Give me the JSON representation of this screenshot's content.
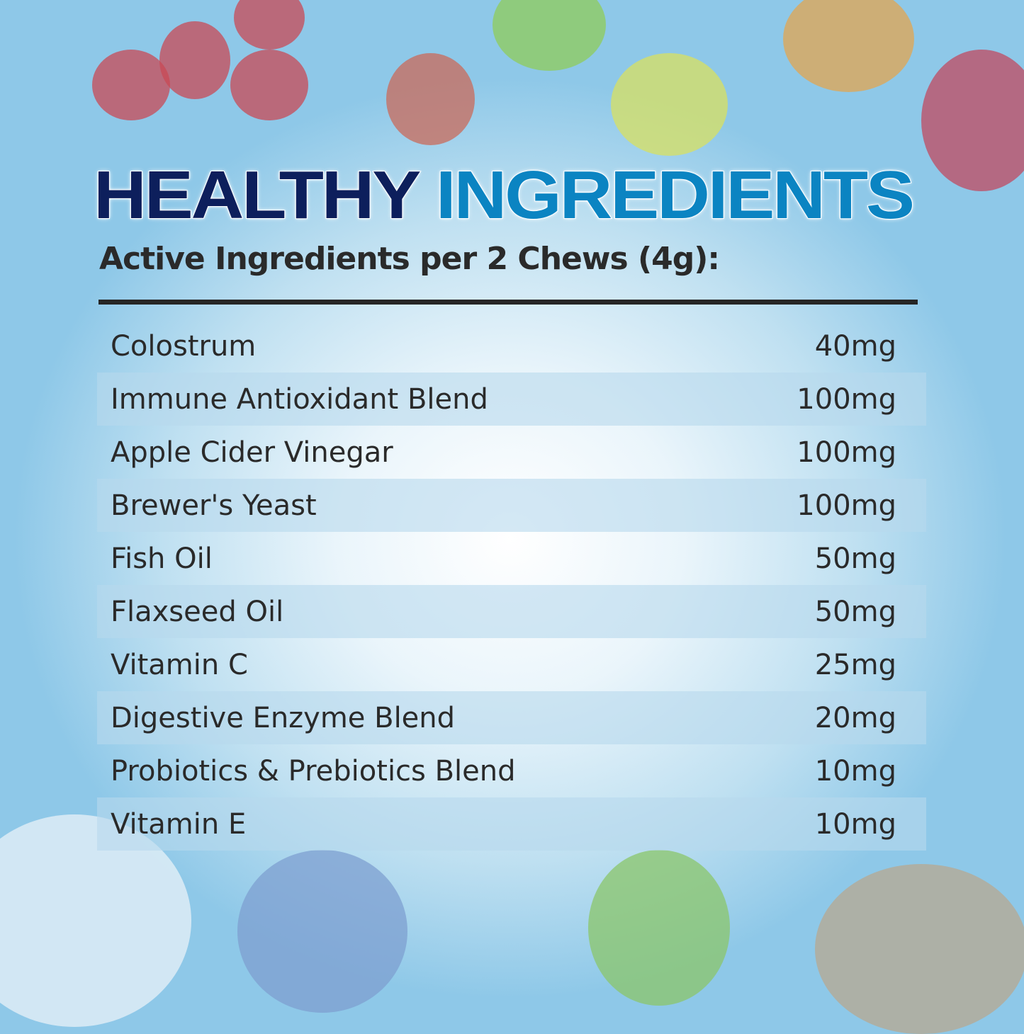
{
  "title": {
    "part1": "HEALTHY",
    "part2": "INGREDIENTS"
  },
  "subtitle": "Active Ingredients per 2 Chews (4g):",
  "colors": {
    "title_dark": "#0d1f5c",
    "title_accent": "#0b84c2",
    "row_shade": "#b8d9ec"
  },
  "ingredients": [
    {
      "name": "Colostrum",
      "amount": "40mg"
    },
    {
      "name": "Immune Antioxidant Blend",
      "amount": "100mg"
    },
    {
      "name": "Apple Cider Vinegar",
      "amount": "100mg"
    },
    {
      "name": "Brewer's Yeast",
      "amount": "100mg"
    },
    {
      "name": "Fish Oil",
      "amount": "50mg"
    },
    {
      "name": "Flaxseed Oil",
      "amount": "50mg"
    },
    {
      "name": "Vitamin C",
      "amount": "25mg"
    },
    {
      "name": "Digestive Enzyme Blend",
      "amount": "20mg"
    },
    {
      "name": "Probiotics & Prebiotics Blend",
      "amount": "10mg"
    },
    {
      "name": "Vitamin E",
      "amount": "10mg"
    }
  ]
}
